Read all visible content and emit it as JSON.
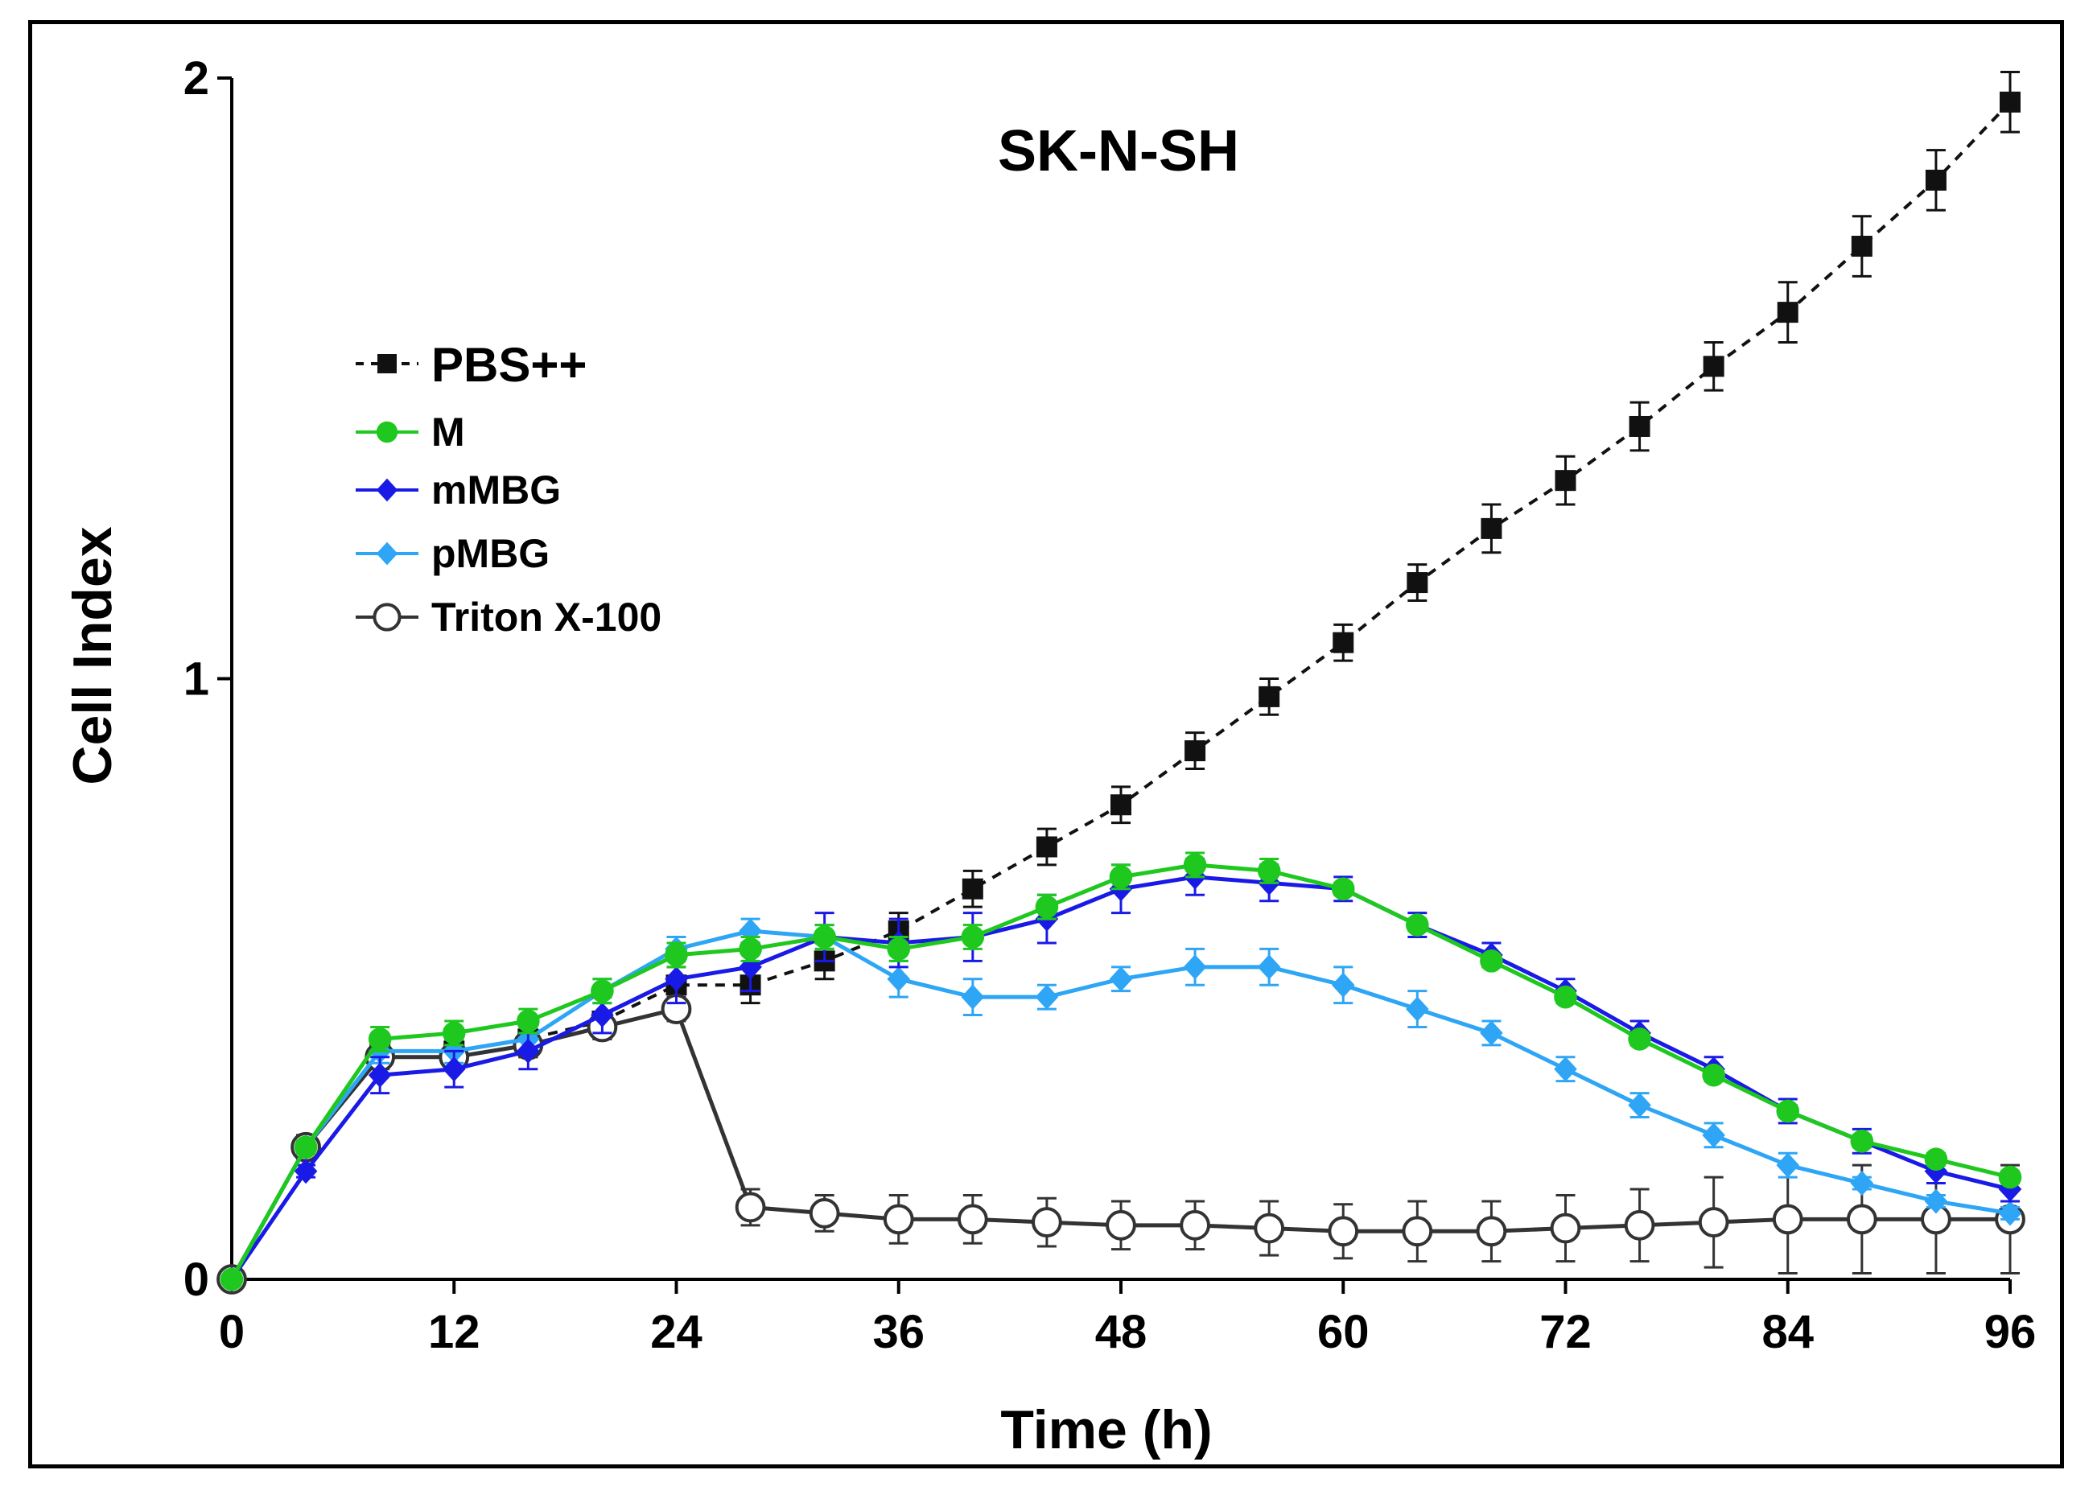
{
  "chart_data": {
    "type": "line",
    "title": "SK-N-SH",
    "xlabel": "Time (h)",
    "ylabel": "Cell Index",
    "xlim": [
      0,
      96
    ],
    "ylim": [
      0,
      2
    ],
    "xticks": [
      "0",
      "12",
      "24",
      "36",
      "48",
      "60",
      "72",
      "84",
      "96"
    ],
    "yticks": [
      "0",
      "1",
      "2"
    ],
    "x": [
      0,
      4,
      8,
      12,
      16,
      20,
      24,
      28,
      32,
      36,
      40,
      44,
      48,
      52,
      56,
      60,
      64,
      68,
      72,
      76,
      80,
      84,
      88,
      92,
      96
    ],
    "legend_position": "upper-left",
    "series": [
      {
        "name": "PBS++",
        "color": "#111111",
        "marker": "square",
        "line": "dashed",
        "values": [
          0,
          0.22,
          0.38,
          0.38,
          0.4,
          0.43,
          0.49,
          0.49,
          0.53,
          0.58,
          0.65,
          0.72,
          0.79,
          0.88,
          0.97,
          1.06,
          1.16,
          1.25,
          1.33,
          1.42,
          1.52,
          1.61,
          1.72,
          1.83,
          1.96
        ],
        "errors": [
          0,
          0.02,
          0.02,
          0.02,
          0.03,
          0.03,
          0.03,
          0.03,
          0.03,
          0.03,
          0.03,
          0.03,
          0.03,
          0.03,
          0.03,
          0.03,
          0.03,
          0.04,
          0.04,
          0.04,
          0.04,
          0.05,
          0.05,
          0.05,
          0.05
        ]
      },
      {
        "name": "M",
        "color": "#1ec81e",
        "marker": "circle",
        "line": "solid",
        "values": [
          0,
          0.22,
          0.4,
          0.41,
          0.43,
          0.48,
          0.54,
          0.55,
          0.57,
          0.55,
          0.57,
          0.62,
          0.67,
          0.69,
          0.68,
          0.65,
          0.59,
          0.53,
          0.47,
          0.4,
          0.34,
          0.28,
          0.23,
          0.2,
          0.17
        ],
        "errors": [
          0,
          0.01,
          0.02,
          0.02,
          0.02,
          0.02,
          0.02,
          0.02,
          0.02,
          0.02,
          0.02,
          0.02,
          0.02,
          0.02,
          0.02,
          0.01,
          0.01,
          0.01,
          0.01,
          0.01,
          0.01,
          0.01,
          0.01,
          0.01,
          0.01
        ]
      },
      {
        "name": "mMBG",
        "color": "#1a1ae6",
        "marker": "diamond",
        "line": "solid",
        "values": [
          0,
          0.18,
          0.34,
          0.35,
          0.38,
          0.44,
          0.5,
          0.52,
          0.57,
          0.56,
          0.57,
          0.6,
          0.65,
          0.67,
          0.66,
          0.65,
          0.59,
          0.54,
          0.48,
          0.41,
          0.35,
          0.28,
          0.23,
          0.18,
          0.15
        ],
        "errors": [
          0,
          0.01,
          0.03,
          0.03,
          0.03,
          0.03,
          0.04,
          0.04,
          0.04,
          0.04,
          0.04,
          0.04,
          0.04,
          0.03,
          0.03,
          0.02,
          0.02,
          0.02,
          0.02,
          0.02,
          0.02,
          0.02,
          0.02,
          0.02,
          0.02
        ]
      },
      {
        "name": "pMBG",
        "color": "#2ea6f5",
        "marker": "diamond",
        "line": "solid",
        "values": [
          0,
          0.22,
          0.38,
          0.38,
          0.4,
          0.48,
          0.55,
          0.58,
          0.57,
          0.5,
          0.47,
          0.47,
          0.5,
          0.52,
          0.52,
          0.49,
          0.45,
          0.41,
          0.35,
          0.29,
          0.24,
          0.19,
          0.16,
          0.13,
          0.11
        ],
        "errors": [
          0,
          0.01,
          0.02,
          0.02,
          0.02,
          0.02,
          0.02,
          0.02,
          0.02,
          0.03,
          0.03,
          0.02,
          0.02,
          0.03,
          0.03,
          0.03,
          0.03,
          0.02,
          0.02,
          0.02,
          0.02,
          0.02,
          0.01,
          0.01,
          0.01
        ]
      },
      {
        "name": "Triton X-100",
        "color": "#333333",
        "marker": "open-circle",
        "line": "solid",
        "values": [
          0,
          0.22,
          0.37,
          0.37,
          0.39,
          0.42,
          0.45,
          0.12,
          0.11,
          0.1,
          0.1,
          0.095,
          0.09,
          0.09,
          0.085,
          0.08,
          0.08,
          0.08,
          0.085,
          0.09,
          0.095,
          0.1,
          0.1,
          0.1,
          0.1
        ],
        "errors": [
          0,
          0.01,
          0.02,
          0.02,
          0.02,
          0.02,
          0.02,
          0.03,
          0.03,
          0.04,
          0.04,
          0.04,
          0.04,
          0.04,
          0.045,
          0.045,
          0.05,
          0.05,
          0.055,
          0.06,
          0.075,
          0.09,
          0.09,
          0.09,
          0.09
        ]
      }
    ]
  }
}
